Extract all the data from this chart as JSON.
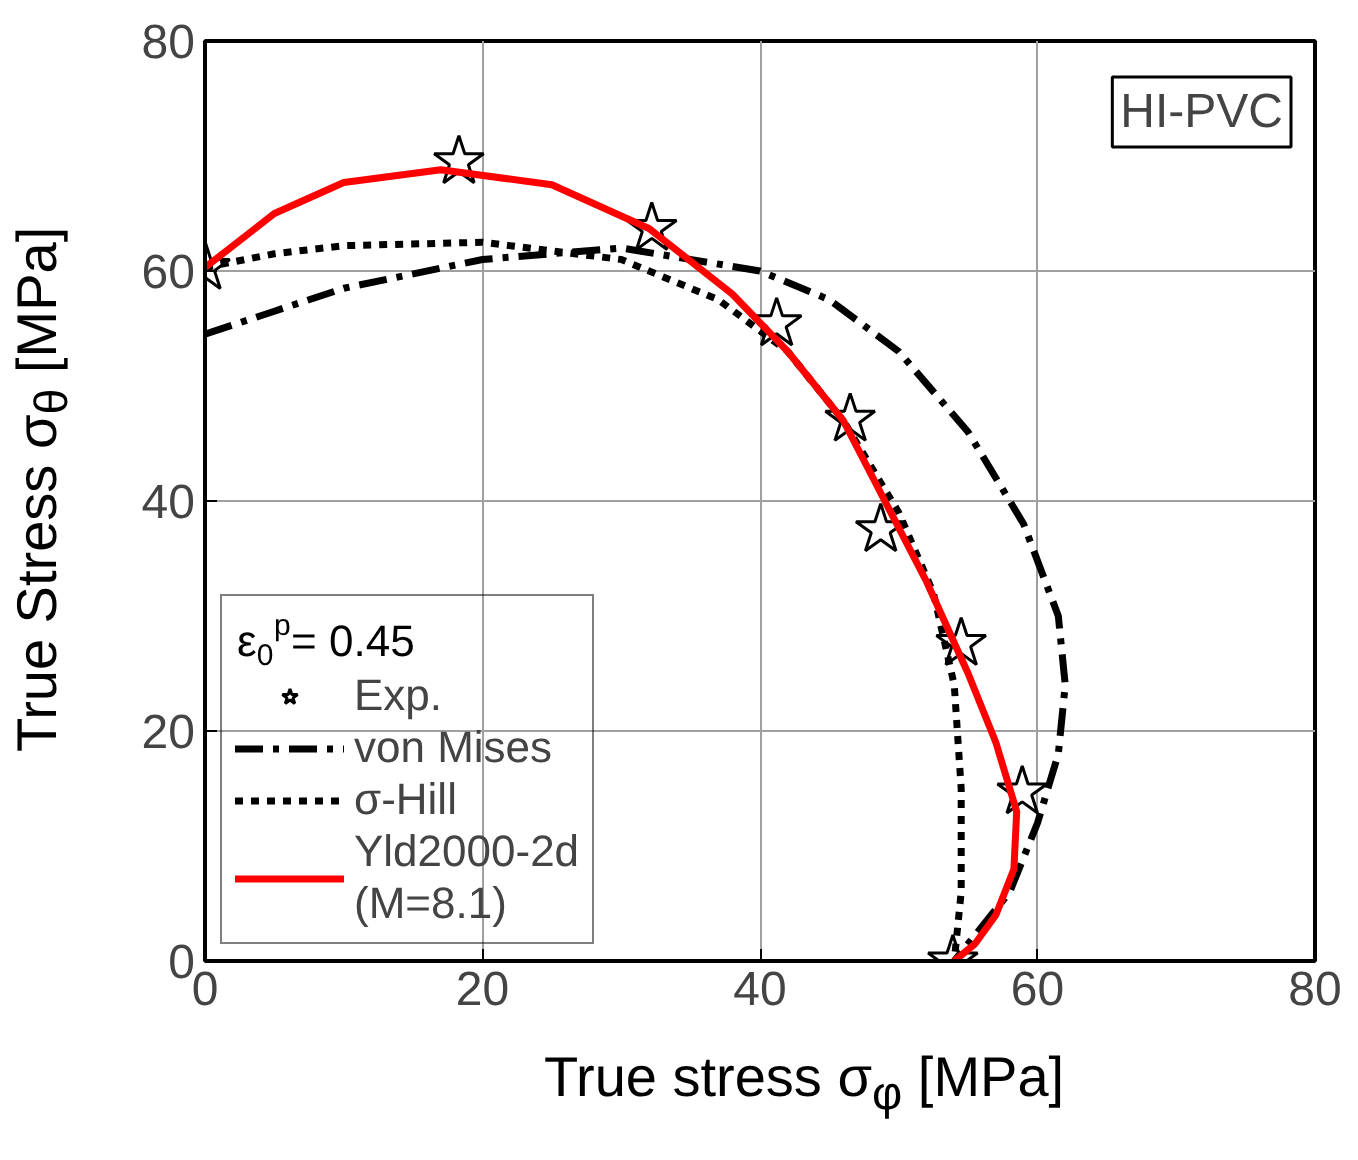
{
  "chart_data": {
    "type": "line",
    "xlabel": "True stress σ$_{φ}$ [MPa]",
    "ylabel": "True Stress σ$_{θ}$ [MPa]",
    "legend_title": "ε$_{0}$$^{p}$= 0.45",
    "annotations": [
      "HI-PVC"
    ],
    "xlim": [
      0,
      80
    ],
    "ylim": [
      0,
      80
    ],
    "xticks": [
      0,
      20,
      40,
      60,
      80
    ],
    "yticks": [
      0,
      20,
      40,
      60,
      80
    ],
    "grid": true,
    "legend": "bottom left",
    "series": [
      {
        "name": "Exp.",
        "type": "scatter",
        "marker": "star",
        "color": "#000000",
        "x": [
          0,
          18.3,
          32.2,
          41.2,
          46.5,
          48.7,
          54.5,
          58.9,
          53.9
        ],
        "values": [
          60.3,
          69.5,
          63.7,
          55.4,
          47.1,
          37.5,
          27.6,
          14.7,
          0
        ]
      },
      {
        "name": "von Mises",
        "type": "line",
        "line_style": "dashdot",
        "color": "#000000",
        "x": [
          0,
          5,
          10,
          20,
          30,
          40,
          45,
          50,
          55,
          59,
          61.5,
          62,
          61.5,
          60,
          58,
          54
        ],
        "values": [
          54.5,
          56.5,
          58.5,
          61,
          62,
          60,
          57.5,
          53,
          46,
          38,
          30,
          24,
          18,
          12,
          6,
          0
        ]
      },
      {
        "name": "σ-Hill",
        "type": "line",
        "line_style": "dotted",
        "color": "#000000",
        "x": [
          0,
          5,
          10,
          20,
          30,
          37,
          42,
          46,
          50,
          52.5,
          54,
          54.5,
          54.5,
          54
        ],
        "values": [
          60.3,
          61.5,
          62.2,
          62.5,
          61,
          57.5,
          53,
          47,
          39,
          32,
          24,
          15,
          6,
          0
        ]
      },
      {
        "name": "Yld2000-2d\n(M=8.1)",
        "type": "line",
        "line_style": "solid",
        "color": "#ff0000",
        "x": [
          0,
          5,
          10,
          17,
          25,
          32,
          38,
          42,
          46,
          49,
          52,
          55,
          57,
          58.5,
          58.3,
          57,
          55.5,
          54
        ],
        "values": [
          60.3,
          65,
          67.7,
          68.8,
          67.5,
          63.7,
          58,
          53,
          47,
          40,
          33,
          25,
          19,
          13,
          8,
          4,
          1.5,
          0
        ]
      }
    ]
  }
}
